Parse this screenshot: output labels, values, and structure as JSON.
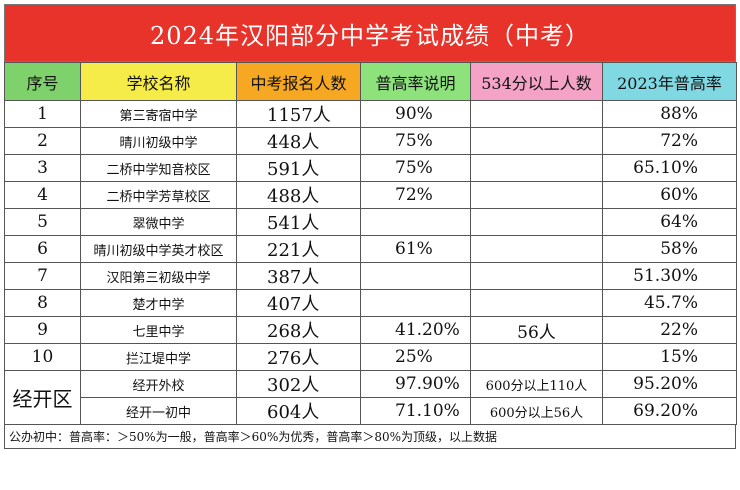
{
  "title": "2024年汉阳部分中学考试成绩（中考）",
  "headers": [
    "序号",
    "学校名称",
    "中考报名人数",
    "普高率说明",
    "534分以上人数",
    "2023年普高率"
  ],
  "rows": [
    {
      "seq": "1",
      "name": "第三寄宿中学",
      "count": "1157人",
      "rate": "90%",
      "high": "",
      "rate2023": "88%"
    },
    {
      "seq": "2",
      "name": "晴川初级中学",
      "count": "448人",
      "rate": "75%",
      "high": "",
      "rate2023": "72%"
    },
    {
      "seq": "3",
      "name": "二桥中学知音校区",
      "count": "591人",
      "rate": "75%",
      "high": "",
      "rate2023": "65.10%"
    },
    {
      "seq": "4",
      "name": "二桥中学芳草校区",
      "count": "488人",
      "rate": "72%",
      "high": "",
      "rate2023": "60%"
    },
    {
      "seq": "5",
      "name": "翠微中学",
      "count": "541人",
      "rate": "",
      "high": "",
      "rate2023": "64%"
    },
    {
      "seq": "6",
      "name": "晴川初级中学英才校区",
      "count": "221人",
      "rate": "61%",
      "high": "",
      "rate2023": "58%"
    },
    {
      "seq": "7",
      "name": "汉阳第三初级中学",
      "count": "387人",
      "rate": "",
      "high": "",
      "rate2023": "51.30%"
    },
    {
      "seq": "8",
      "name": "楚才中学",
      "count": "407人",
      "rate": "",
      "high": "",
      "rate2023": "45.7%"
    },
    {
      "seq": "9",
      "name": "七里中学",
      "count": "268人",
      "rate": "41.20%",
      "high": "56人",
      "rate2023": "22%"
    },
    {
      "seq": "10",
      "name": "拦江堤中学",
      "count": "276人",
      "rate": "25%",
      "high": "",
      "rate2023": "15%"
    }
  ],
  "region": {
    "label": "经开区",
    "rows": [
      {
        "name": "经开外校",
        "count": "302人",
        "rate": "97.90%",
        "high": "600分以上110人",
        "rate2023": "95.20%"
      },
      {
        "name": "经开一初中",
        "count": "604人",
        "rate": "71.10%",
        "high": "600分以上56人",
        "rate2023": "69.20%"
      }
    ]
  },
  "footer": "公办初中：普高率：＞50%为一般，普高率＞60%为优秀，普高率＞80%为顶级，以上数据",
  "colors": {
    "title_bg": "#e8332a",
    "seq_header": "#7ed16b",
    "name_header": "#f5ec4a",
    "count_header": "#f6a823",
    "note_header": "#8ee27b",
    "high_header": "#f4a3c7",
    "rate2023_header": "#80d8e2"
  }
}
